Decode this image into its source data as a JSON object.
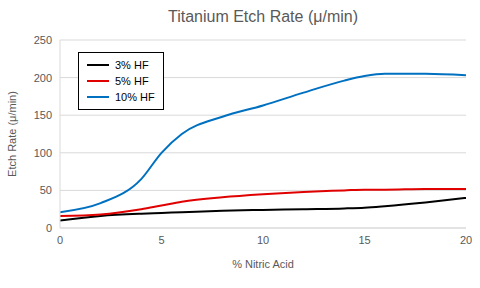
{
  "chart_data": {
    "type": "line",
    "title": "Titanium Etch Rate (μ/min)",
    "x_label": "% Nitric Acid",
    "y_label": "Etch Rate (μ/min)",
    "x": [
      0,
      2,
      4,
      5,
      6,
      8,
      10,
      12,
      14,
      15,
      16,
      18,
      20
    ],
    "series": [
      {
        "name": "3% HF",
        "color": "#000000",
        "values": [
          10,
          16,
          19,
          20,
          21,
          23,
          24,
          25,
          26,
          27,
          29,
          34,
          40
        ]
      },
      {
        "name": "5% HF",
        "color": "#e00000",
        "values": [
          16,
          18,
          25,
          30,
          35,
          41,
          45,
          48,
          50,
          51,
          51,
          52,
          52
        ]
      },
      {
        "name": "10% HF",
        "color": "#0070c0",
        "values": [
          21,
          33,
          65,
          100,
          125,
          148,
          163,
          180,
          196,
          202,
          205,
          205,
          203
        ]
      }
    ],
    "xlim": [
      0,
      20
    ],
    "xticks": [
      0,
      5,
      10,
      15,
      20
    ],
    "ylim": [
      0,
      250
    ],
    "yticks": [
      0,
      50,
      100,
      150,
      200,
      250
    ],
    "grid": true,
    "legend": "upper left"
  }
}
